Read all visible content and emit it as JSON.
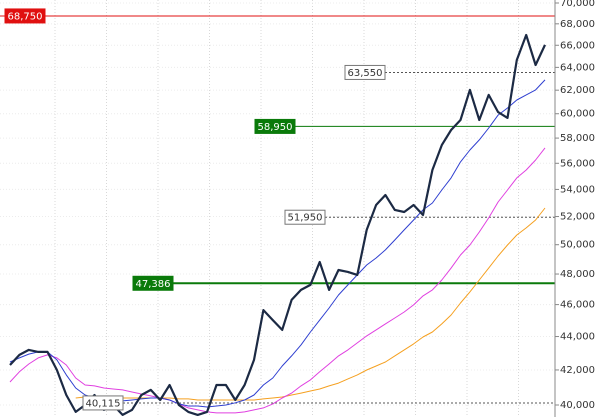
{
  "chart_data": {
    "type": "line",
    "log_scale": true,
    "grid": true,
    "ylim": [
      40000,
      70000
    ],
    "yticks": [
      {
        "value": 40000,
        "label": "40,000"
      },
      {
        "value": 42000,
        "label": "42,000"
      },
      {
        "value": 44000,
        "label": "44,000"
      },
      {
        "value": 46000,
        "label": "46,000"
      },
      {
        "value": 48000,
        "label": "48,000"
      },
      {
        "value": 50000,
        "label": "50,000"
      },
      {
        "value": 52000,
        "label": "52,000"
      },
      {
        "value": 54000,
        "label": "54,000"
      },
      {
        "value": 56000,
        "label": "56,000"
      },
      {
        "value": 58000,
        "label": "58,000"
      },
      {
        "value": 60000,
        "label": "60,000"
      },
      {
        "value": 62000,
        "label": "62,000"
      },
      {
        "value": 64000,
        "label": "64,000"
      },
      {
        "value": 66000,
        "label": "66,000"
      },
      {
        "value": 68000,
        "label": "68,000"
      },
      {
        "value": 70000,
        "label": "70,000"
      }
    ],
    "series": [
      {
        "color": "#1c2a44",
        "width": 2.2,
        "values": [
          42290,
          42890,
          43190,
          43070,
          43070,
          42000,
          40560,
          39620,
          40000,
          40560,
          39730,
          40000,
          39450,
          39730,
          40560,
          40850,
          40280,
          41130,
          40000,
          39620,
          39450,
          39620,
          41130,
          41130,
          40280,
          41130,
          42590,
          45650,
          45020,
          44410,
          46300,
          46950,
          47280,
          48810,
          46950,
          48270,
          48140,
          47940,
          51040,
          52840,
          53580,
          52480,
          52330,
          52840,
          52110,
          55480,
          57440,
          58660,
          59480,
          62020,
          59480,
          61590,
          60140,
          59650,
          64660,
          66950,
          64210,
          66030
        ]
      },
      {
        "color": "#2f3fd0",
        "width": 1,
        "values": [
          42470,
          42710,
          42940,
          43070,
          43070,
          42590,
          41710,
          40960,
          40560,
          40390,
          40280,
          40230,
          40230,
          40280,
          40340,
          40390,
          40390,
          40280,
          40060,
          39945,
          39945,
          39890,
          39945,
          40000,
          40120,
          40280,
          40560,
          41130,
          41530,
          42230,
          42830,
          43490,
          44280,
          45020,
          45780,
          46620,
          47280,
          47940,
          48610,
          49080,
          49640,
          50330,
          51040,
          51750,
          52480,
          52990,
          53960,
          54870,
          56110,
          57050,
          57850,
          58820,
          59890,
          60480,
          61160,
          61590,
          62020,
          62890
        ]
      },
      {
        "color": "#e040e0",
        "width": 1,
        "values": [
          41300,
          41890,
          42350,
          42710,
          42890,
          42710,
          42290,
          41530,
          41130,
          41080,
          40960,
          40900,
          40850,
          40730,
          40620,
          40510,
          40390,
          40280,
          40060,
          39840,
          39730,
          39620,
          39560,
          39560,
          39560,
          39620,
          39730,
          39840,
          40060,
          40390,
          40670,
          41080,
          41420,
          41890,
          42350,
          42830,
          43190,
          43610,
          44040,
          44410,
          44780,
          45150,
          45530,
          45980,
          46560,
          46950,
          47600,
          48400,
          49290,
          49980,
          50890,
          51900,
          53060,
          53960,
          54870,
          55480,
          56260,
          57210
        ]
      },
      {
        "color": "#f5a020",
        "width": 1,
        "values": [
          null,
          null,
          null,
          null,
          null,
          null,
          null,
          40390,
          40450,
          40450,
          40450,
          40390,
          40390,
          40390,
          40390,
          40390,
          40390,
          40390,
          40340,
          40340,
          40280,
          40280,
          40280,
          40280,
          40280,
          40280,
          40280,
          40340,
          40390,
          40450,
          40560,
          40670,
          40790,
          40900,
          41080,
          41240,
          41480,
          41710,
          42000,
          42230,
          42470,
          42830,
          43190,
          43550,
          43970,
          44280,
          44780,
          45340,
          46100,
          46820,
          47600,
          48400,
          49220,
          49980,
          50680,
          51180,
          51750,
          52620
        ]
      }
    ],
    "levels": [
      {
        "value": 68750,
        "label": "68,750",
        "color": "#e01010",
        "style": "solid"
      },
      {
        "value": 58950,
        "label": "58,950",
        "color": "#0a7a0a",
        "style": "solid"
      },
      {
        "value": 47386,
        "label": "47,386",
        "color": "#0a7a0a",
        "style": "thick"
      },
      {
        "value": 63550,
        "label": "63,550",
        "color": "#555555",
        "style": "dashed"
      },
      {
        "value": 51950,
        "label": "51,950",
        "color": "#555555",
        "style": "dashed"
      },
      {
        "value": 40115,
        "label": "40,115",
        "color": "#555555",
        "style": "dashed"
      }
    ]
  }
}
